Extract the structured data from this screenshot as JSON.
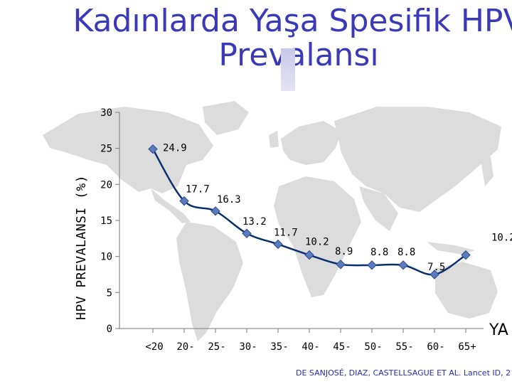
{
  "title_lines": [
    "Kadınlarda Yaşa Spesifik HPV",
    "Prevalansı"
  ],
  "colors": {
    "title": "#3a3ab8",
    "line": "#0a2f6e",
    "marker_fill": "#5b7bbf",
    "marker_stroke": "#2b4a8e",
    "map": "#dcdcdc"
  },
  "citation": "DE SANJOSÉ, DIAZ, CASTELLSAGUE ET AL. Lancet ID, 2",
  "chart_data": {
    "type": "line",
    "title": "Kadınlarda Yaşa Spesifik HPV Prevalansı",
    "ylabel": "HPV PREVALANSI (%)",
    "xlabel": "YA",
    "categories": [
      "<20",
      "20-",
      "25-",
      "30-",
      "35-",
      "40-",
      "45-",
      "50-",
      "55-",
      "60-",
      "65+"
    ],
    "values": [
      24.9,
      17.7,
      16.3,
      13.2,
      11.7,
      10.2,
      8.9,
      8.8,
      8.8,
      7.5,
      10.2
    ],
    "data_labels": [
      "24.9",
      "17.7",
      "16.3",
      "13.2",
      "11.7",
      "10.2",
      "8.9",
      "8.8",
      "8.8",
      "7.5",
      "10.2"
    ],
    "yticks": [
      0,
      5,
      10,
      15,
      20,
      25,
      30
    ],
    "ylim": [
      0,
      30
    ],
    "grid": false,
    "legend": "none"
  }
}
